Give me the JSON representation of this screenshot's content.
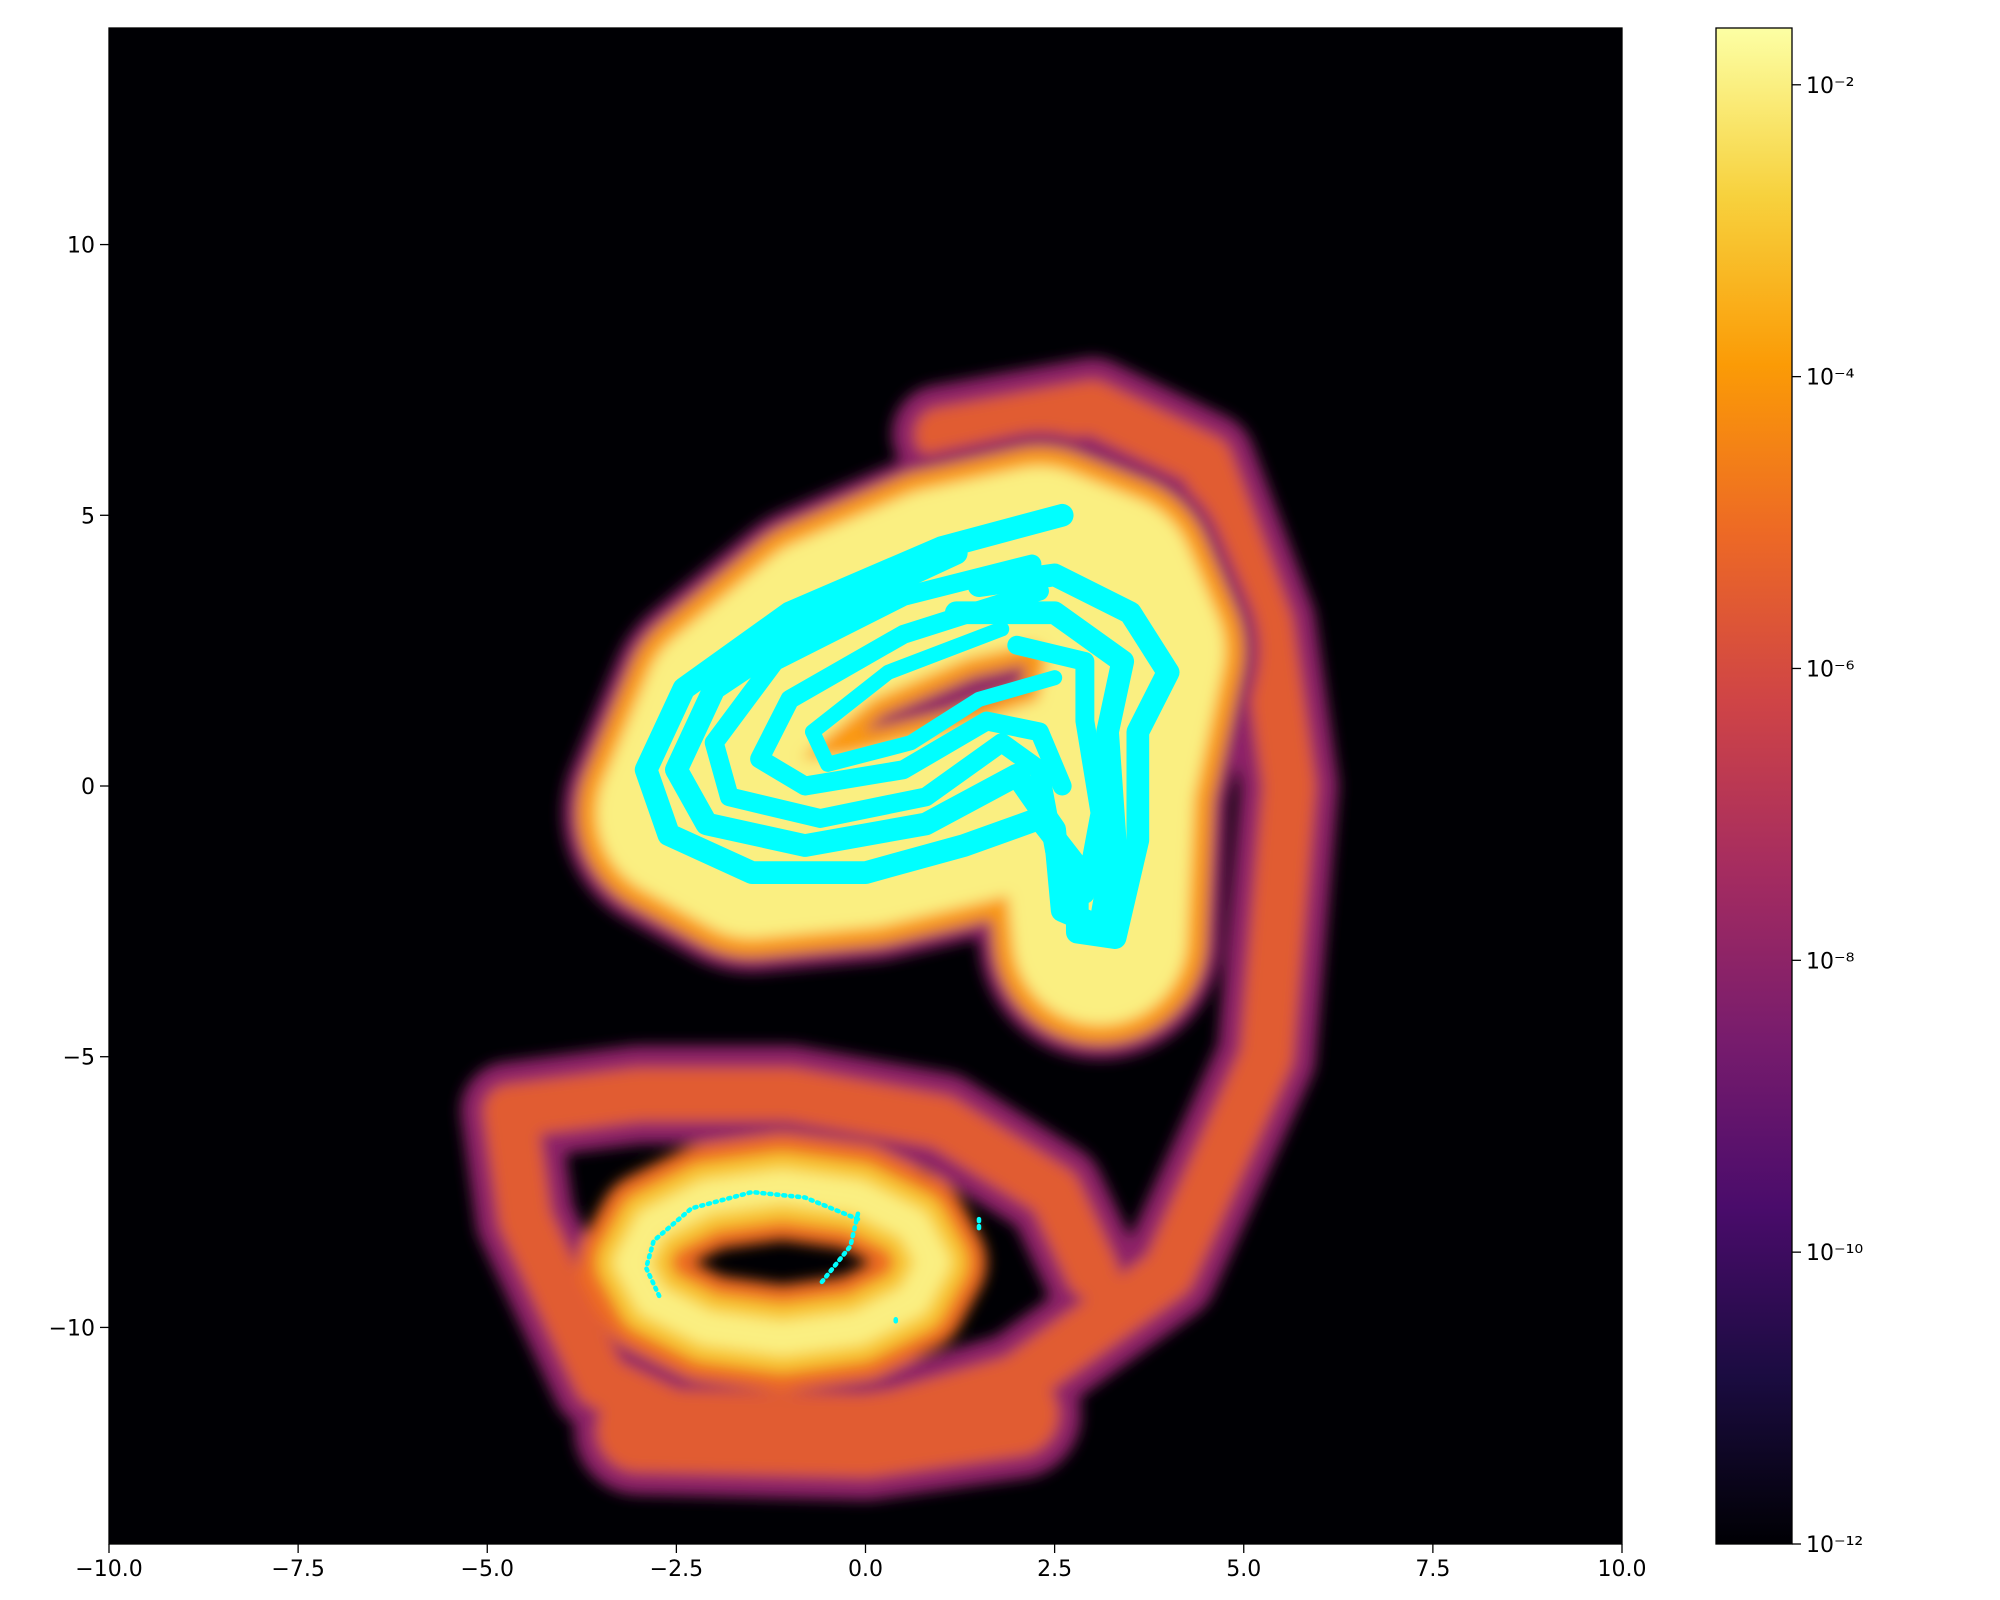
{
  "chart_data": {
    "type": "heatmap",
    "background": "#000004",
    "xlim": [
      -10,
      10
    ],
    "ylim": [
      -14,
      14
    ],
    "xticks": [
      {
        "value": -10,
        "label": "−10.0"
      },
      {
        "value": -7.5,
        "label": "−7.5"
      },
      {
        "value": -5,
        "label": "−5.0"
      },
      {
        "value": -2.5,
        "label": "−2.5"
      },
      {
        "value": 0,
        "label": "0.0"
      },
      {
        "value": 2.5,
        "label": "2.5"
      },
      {
        "value": 5,
        "label": "5.0"
      },
      {
        "value": 7.5,
        "label": "7.5"
      },
      {
        "value": 10,
        "label": "10.0"
      }
    ],
    "yticks": [
      {
        "value": -10,
        "label": "−10"
      },
      {
        "value": -5,
        "label": "−5"
      },
      0,
      5,
      10
    ],
    "colorbar": {
      "log": true,
      "lim": [
        1e-12,
        0.0245
      ],
      "ticks": [
        {
          "value": 1e-12,
          "label": "10⁻¹²"
        },
        {
          "value": 1e-10,
          "label": "10⁻¹⁰"
        },
        {
          "value": 1e-08,
          "label": "10⁻⁸"
        },
        {
          "value": 1e-06,
          "label": "10⁻⁶"
        },
        {
          "value": 0.0001,
          "label": "10⁻⁴"
        },
        {
          "value": 0.01,
          "label": "10⁻²"
        }
      ],
      "colors": [
        "#000004",
        "#1b0c41",
        "#4a0c6b",
        "#781c6d",
        "#a52c60",
        "#cf4446",
        "#ed6925",
        "#fb9b06",
        "#f7d13d",
        "#fcffa4"
      ]
    },
    "regions": [
      {
        "x": [
          1,
          3,
          4.5,
          5.3,
          5.6,
          5.3,
          4,
          2,
          0,
          -2,
          -3.5,
          -4.5,
          -4.7,
          -3,
          -1,
          1,
          2.5,
          3
        ],
        "y": [
          6.5,
          7,
          6,
          3,
          0,
          -5,
          -9,
          -11,
          -11.8,
          -12,
          -11,
          -8,
          -6,
          -5.7,
          -5.7,
          -6.2,
          -7.5,
          -9
        ],
        "width": 1.3,
        "value": 1e-08
      },
      {
        "x": [
          -3,
          0,
          2
        ],
        "y": [
          -11.9,
          -12,
          -11.6
        ],
        "width": 1.7,
        "value": 1e-08
      },
      {
        "x": [
          1,
          3,
          4.5,
          5.3,
          5.6,
          5.3,
          4,
          2,
          0,
          -2,
          -3.5,
          -4.5,
          -4.7,
          -3,
          -1,
          1,
          2.5,
          3
        ],
        "y": [
          6.5,
          7,
          6,
          3,
          0,
          -5,
          -9,
          -11,
          -11.8,
          -12,
          -11,
          -8,
          -6,
          -5.7,
          -5.7,
          -6.2,
          -7.5,
          -9
        ],
        "width": 0.7,
        "value": 3e-06
      },
      {
        "x": [
          -3,
          0,
          2
        ],
        "y": [
          -11.9,
          -12,
          -11.6
        ],
        "width": 1.1,
        "value": 3e-06
      },
      {
        "x": [
          4.1,
          4.2,
          3.8,
          3.2
        ],
        "y": [
          1.2,
          3.5,
          5,
          5.3
        ],
        "width": 0.6,
        "value": 3e-06
      },
      {
        "x": [
          0.9,
          0.63,
          -0.1,
          -1.1,
          -2.1,
          -2.83,
          -3.1,
          -2.83,
          -2.1,
          -1.1,
          -0.1,
          0.63,
          0.9
        ],
        "y": [
          -8.8,
          -8.1,
          -7.59,
          -7.4,
          -7.59,
          -8.1,
          -8.8,
          -9.5,
          -10.01,
          -10.2,
          -10.01,
          -9.5,
          -8.8
        ],
        "width": 1.4,
        "value": 1e-05
      },
      {
        "x": [
          0.9,
          0.63,
          -0.1,
          -1.1,
          -2.1,
          -2.83,
          -3.1,
          -2.83,
          -2.1,
          -1.1,
          -0.1,
          0.63,
          0.9
        ],
        "y": [
          -8.8,
          -8.1,
          -7.59,
          -7.4,
          -7.59,
          -8.1,
          -8.8,
          -9.5,
          -10.01,
          -10.2,
          -10.01,
          -9.5,
          -8.8
        ],
        "width": 0.9,
        "value": 0.001
      },
      {
        "x": [
          0.9,
          0.63,
          -0.1,
          -1.1,
          -2.1,
          -2.83,
          -3.1,
          -2.83,
          -2.1,
          -1.1,
          -0.1,
          0.63,
          0.9
        ],
        "y": [
          -8.8,
          -8.1,
          -7.59,
          -7.4,
          -7.59,
          -8.1,
          -8.8,
          -9.5,
          -10.01,
          -10.2,
          -10.01,
          -9.5,
          -8.8
        ],
        "width": 0.45,
        "value": 0.01
      },
      {
        "x": [
          -2.4,
          -1.8,
          -0.5,
          1,
          2.3,
          3.2,
          3.6,
          3.2,
          3.1
        ],
        "y": [
          -0.5,
          1.5,
          3,
          3.9,
          4.3,
          3.8,
          2.5,
          0,
          -2.8
        ],
        "width": 3.2,
        "value": 1e-08
      },
      {
        "x": [
          -2.4,
          -1.5,
          0,
          1.5,
          2.5,
          3,
          3.1
        ],
        "y": [
          -0.5,
          -1.2,
          -1,
          -0.5,
          0,
          -1.5,
          -2.8
        ],
        "width": 3.2,
        "value": 1e-08
      },
      {
        "x": [
          -2.4,
          -1.8,
          -0.5,
          1,
          2.3,
          3.2,
          3.6,
          3.2,
          3.1
        ],
        "y": [
          -0.5,
          1.5,
          3,
          3.9,
          4.3,
          3.8,
          2.5,
          0,
          -2.8
        ],
        "width": 2.8,
        "value": 0.0001
      },
      {
        "x": [
          -2.4,
          -1.5,
          0,
          1.5,
          2.5,
          3,
          3.1
        ],
        "y": [
          -0.5,
          -1.2,
          -1,
          -0.5,
          0,
          -1.5,
          -2.8
        ],
        "width": 2.8,
        "value": 0.0001
      },
      {
        "x": [
          -2.4,
          -1.8,
          -0.5,
          1,
          2.3,
          3.2,
          3.6,
          3.2,
          3.1
        ],
        "y": [
          -0.5,
          1.5,
          3,
          3.9,
          4.3,
          3.8,
          2.5,
          0,
          -2.8
        ],
        "width": 2.3,
        "value": 0.01
      },
      {
        "x": [
          -2.4,
          -1.5,
          0,
          1.5,
          2.5,
          3,
          3.1
        ],
        "y": [
          -0.5,
          -1.2,
          -1,
          -0.5,
          0,
          -1.5,
          -2.8
        ],
        "width": 2.3,
        "value": 0.01
      }
    ],
    "trajectories": [
      {
        "color": "#00ffff",
        "size": 0.3,
        "x": [
          2.6,
          1,
          -1,
          -2.4,
          -2.9,
          -2.6,
          -1.5,
          0,
          1.3,
          2.3,
          2.8,
          2.8,
          3.3,
          3.6,
          3.6,
          4,
          3.5,
          2.5,
          1.5
        ],
        "y": [
          5,
          4.4,
          3.2,
          1.8,
          0.3,
          -0.9,
          -1.6,
          -1.6,
          -1.1,
          -0.6,
          -1.5,
          -2.7,
          -2.8,
          -1,
          1,
          2.1,
          3.2,
          3.9,
          3.7
        ]
      },
      {
        "color": "#00ffff",
        "size": 0.3,
        "x": [
          1.2,
          -0.5,
          -2,
          -2.5,
          -2.1,
          -0.8,
          0.8,
          2,
          2.5,
          2.6,
          3.1,
          3.3,
          3.2,
          3.4,
          2.5,
          1.2
        ],
        "y": [
          4.3,
          3.2,
          1.8,
          0.3,
          -0.7,
          -1.1,
          -0.7,
          0.2,
          -0.8,
          -2.3,
          -2.6,
          -1,
          1,
          2.3,
          3.2,
          3.2
        ]
      },
      {
        "color": "#00ffff",
        "size": 0.25,
        "x": [
          2.2,
          0.5,
          -1.2,
          -2,
          -1.8,
          -0.6,
          0.8,
          1.8,
          2.3,
          2.5,
          2.9,
          3.1,
          2.9,
          2.9,
          2
        ],
        "y": [
          4.1,
          3.5,
          2.3,
          0.8,
          -0.2,
          -0.6,
          -0.2,
          0.8,
          0.3,
          -1.2,
          -2,
          -0.5,
          1.2,
          2.3,
          2.6
        ]
      },
      {
        "color": "#00ffff",
        "size": 0.25,
        "x": [
          2.3,
          0.5,
          -1,
          -1.4,
          -0.8,
          0.5,
          1.6,
          2.3,
          2.6
        ],
        "y": [
          3.6,
          2.8,
          1.6,
          0.5,
          0,
          0.3,
          1.2,
          1,
          0
        ]
      },
      {
        "color": "#00ffff",
        "size": 0.2,
        "x": [
          1.8,
          0.3,
          -0.7,
          -0.5,
          0.6,
          1.5,
          2.5
        ],
        "y": [
          2.9,
          2.1,
          1,
          0.4,
          0.8,
          1.6,
          2
        ]
      },
      {
        "color": "#00ffff",
        "size": 0.06,
        "x": [
          -0.1,
          -0.8,
          -1.5,
          -2.3,
          -2.8,
          -2.9,
          -2.7
        ],
        "y": [
          -8,
          -7.6,
          -7.5,
          -7.8,
          -8.4,
          -8.9,
          -9.5
        ]
      },
      {
        "color": "#00ffff",
        "size": 0.06,
        "x": [
          -0.1,
          -0.2,
          -0.6
        ],
        "y": [
          -7.9,
          -8.5,
          -9.2
        ]
      },
      {
        "color": "#00ffff",
        "size": 0.06,
        "x": [
          1.5,
          1.5
        ],
        "y": [
          -8,
          -8.2
        ]
      },
      {
        "color": "#00ffff",
        "size": 0.06,
        "x": [
          0.4,
          0.4
        ],
        "y": [
          -9.85,
          -9.9
        ]
      }
    ]
  }
}
